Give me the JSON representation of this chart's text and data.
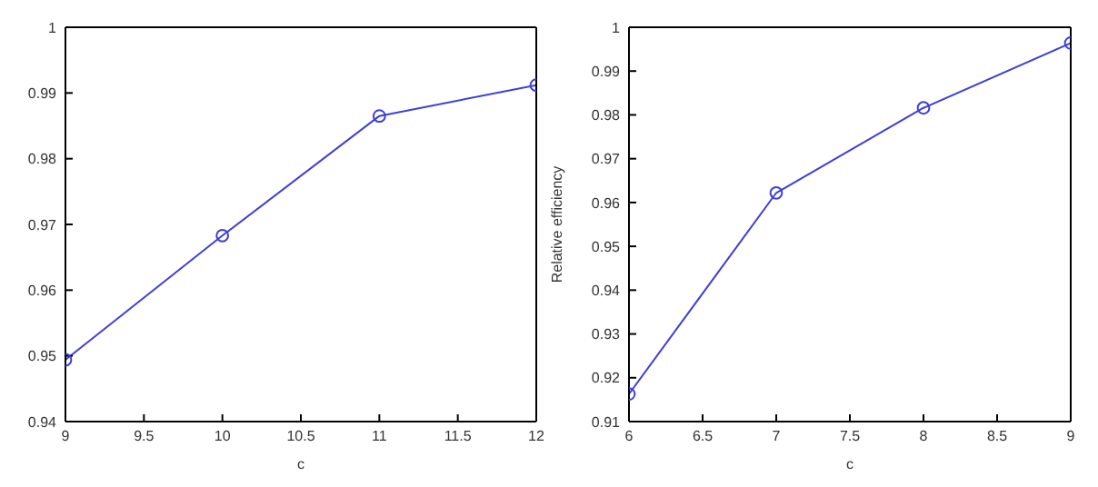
{
  "chart_data": [
    {
      "type": "line",
      "x": [
        9,
        10,
        11,
        12
      ],
      "xlabel": "c",
      "xlim": [
        9,
        12
      ],
      "xticks": [
        9,
        9.5,
        10,
        10.5,
        11,
        11.5,
        12
      ],
      "ylim": [
        0.94,
        1
      ],
      "yticks": [
        0.94,
        0.95,
        0.96,
        0.97,
        0.98,
        0.99,
        1
      ],
      "series": [
        {
          "color": "#3f3fd6",
          "values": [
            0.9494,
            0.9683,
            0.9865,
            0.9912
          ]
        }
      ],
      "marker": "circle",
      "line_style": "solid",
      "grid": false,
      "legend": false
    },
    {
      "type": "line",
      "x": [
        6,
        7,
        8,
        9
      ],
      "xlabel": "c",
      "ylabel": "Relative efficiency",
      "xlim": [
        6,
        9
      ],
      "xticks": [
        6,
        6.5,
        7,
        7.5,
        8,
        8.5,
        9
      ],
      "ylim": [
        0.91,
        1
      ],
      "yticks": [
        0.91,
        0.92,
        0.93,
        0.94,
        0.95,
        0.96,
        0.97,
        0.98,
        0.99,
        1
      ],
      "series": [
        {
          "color": "#3f3fd6",
          "values": [
            0.9163,
            0.9622,
            0.9816,
            0.9964
          ]
        }
      ],
      "marker": "circle",
      "line_style": "solid",
      "grid": false,
      "legend": false
    }
  ]
}
